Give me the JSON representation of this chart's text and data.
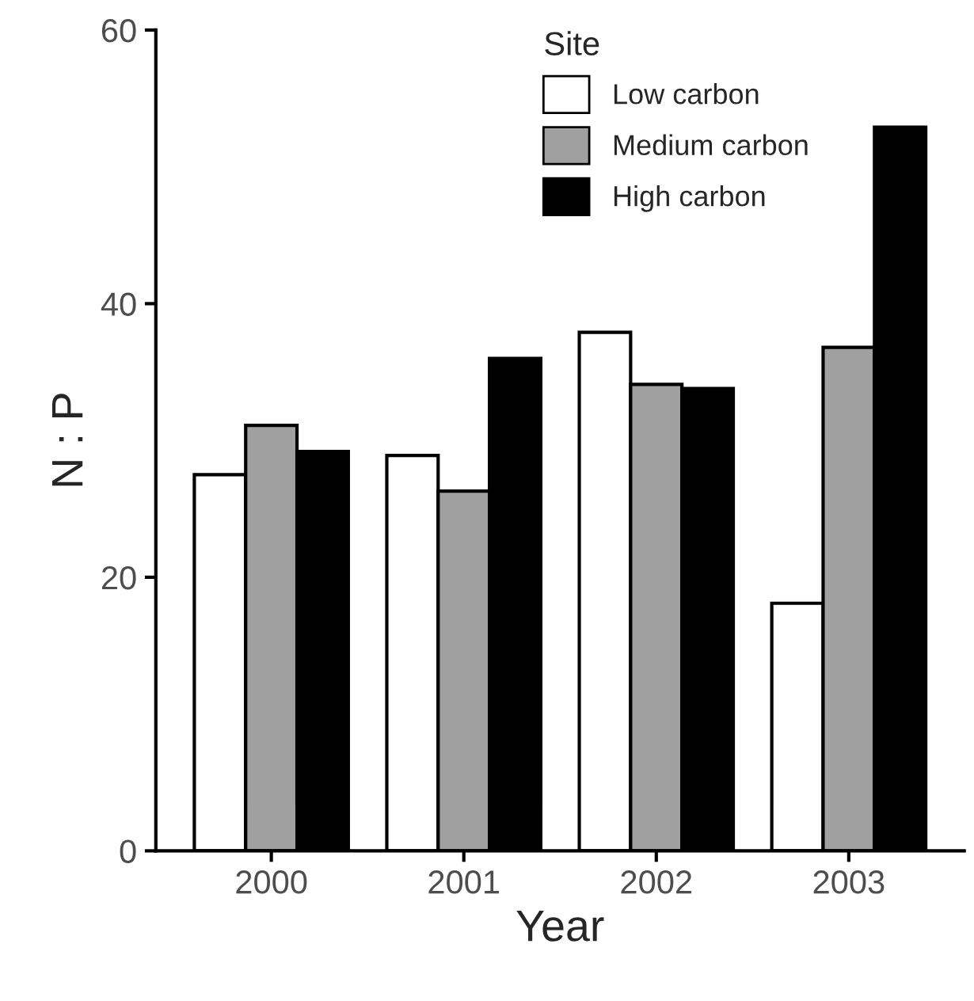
{
  "chart_data": {
    "type": "bar",
    "xlabel": "Year",
    "ylabel": "N : P",
    "legend_title": "Site",
    "categories": [
      "2000",
      "2001",
      "2002",
      "2003"
    ],
    "series": [
      {
        "name": "Low carbon",
        "color": "#ffffff",
        "values": [
          27.5,
          28.9,
          37.9,
          18.1
        ]
      },
      {
        "name": "Medium carbon",
        "color": "#a0a0a0",
        "values": [
          31.1,
          26.3,
          34.1,
          36.8
        ]
      },
      {
        "name": "High carbon",
        "color": "#000000",
        "values": [
          29.2,
          36.0,
          33.8,
          52.9
        ]
      }
    ],
    "ylim": [
      0,
      60
    ],
    "yticks": [
      0,
      20,
      40,
      60
    ],
    "grid": false,
    "legend": "top right"
  }
}
